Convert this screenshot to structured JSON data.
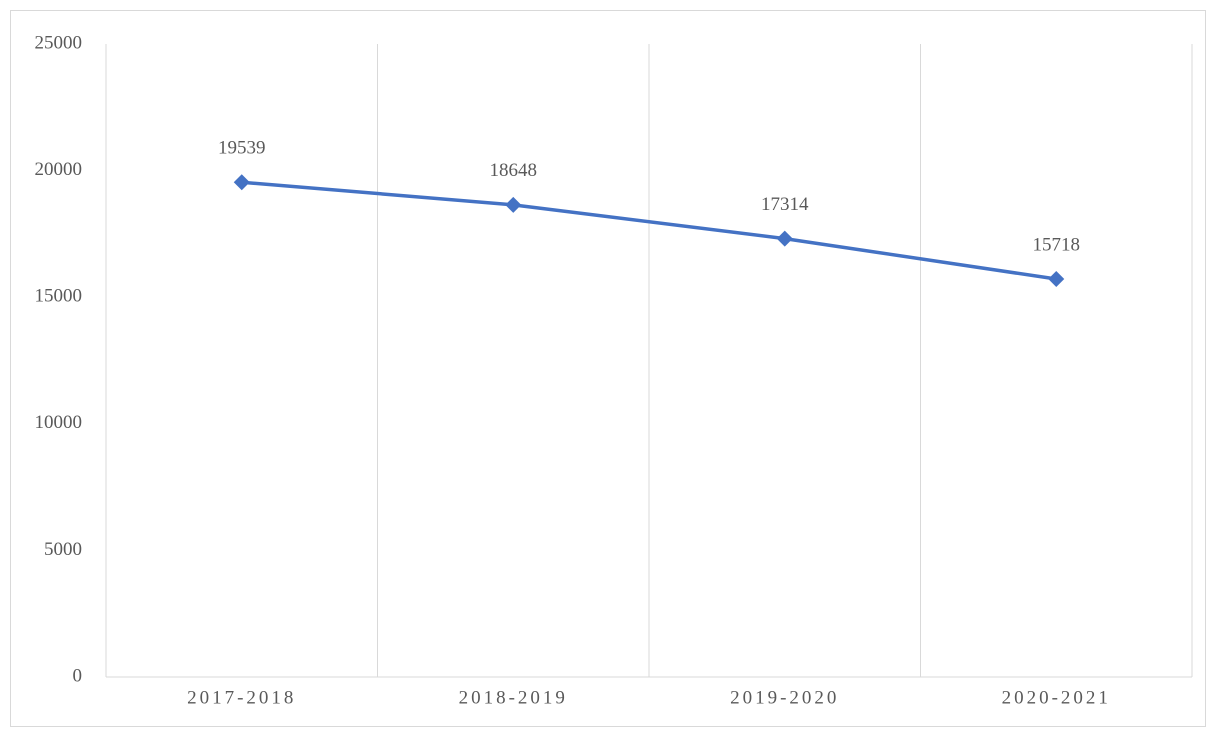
{
  "chart_data": {
    "type": "line",
    "categories": [
      "2017-2018",
      "2018-2019",
      "2019-2020",
      "2020-2021"
    ],
    "series": [
      {
        "color": "#4472c4",
        "values": [
          19539,
          18648,
          17314,
          15718
        ]
      }
    ],
    "ylim": [
      0,
      25000
    ],
    "yticks": [
      0,
      5000,
      10000,
      15000,
      20000,
      25000
    ]
  }
}
